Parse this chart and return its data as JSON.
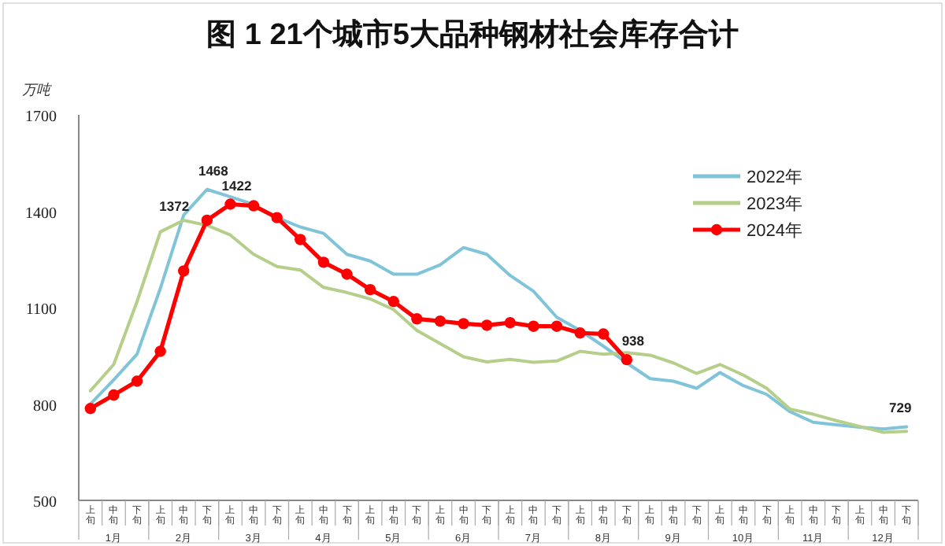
{
  "chart_data": {
    "type": "line",
    "title": "图 1 21个城市5大品种钢材社会库存合计",
    "ylabel": "万吨",
    "categories": [
      "上旬",
      "中旬",
      "下旬",
      "上旬",
      "中旬",
      "下旬",
      "上旬",
      "中旬",
      "下旬",
      "上旬",
      "中旬",
      "下旬",
      "上旬",
      "中旬",
      "下旬",
      "上旬",
      "中旬",
      "下旬",
      "上旬",
      "中旬",
      "下旬",
      "上旬",
      "中旬",
      "下旬",
      "上旬",
      "中旬",
      "下旬",
      "上旬",
      "中旬",
      "下旬",
      "上旬",
      "中旬",
      "下旬",
      "上旬",
      "中旬",
      "下旬"
    ],
    "annotations": [
      "1月",
      "2月",
      "3月",
      "4月",
      "5月",
      "6月",
      "7月",
      "8月",
      "9月",
      "10月",
      "11月",
      "12月"
    ],
    "ylim": [
      500,
      1700
    ],
    "yticks": [
      500,
      800,
      1100,
      1400,
      1700
    ],
    "grid": false,
    "legend": "top right",
    "series": [
      {
        "name": "2022年",
        "color": "#7fc4d8",
        "marker": "none",
        "values": [
          800,
          875,
          955,
          1160,
          1388,
          1468,
          1445,
          1421,
          1380,
          1351,
          1331,
          1266,
          1245,
          1204,
          1204,
          1233,
          1287,
          1266,
          1200,
          1151,
          1070,
          1029,
          980,
          928,
          879,
          871,
          849,
          898,
          857,
          830,
          776,
          743,
          735,
          728,
          722,
          729
        ],
        "value_labels": [
          null,
          null,
          null,
          null,
          null,
          "1468",
          null,
          null,
          null,
          null,
          null,
          null,
          null,
          null,
          null,
          null,
          null,
          null,
          null,
          null,
          null,
          null,
          null,
          null,
          null,
          null,
          null,
          null,
          null,
          null,
          null,
          null,
          null,
          null,
          null,
          "729"
        ]
      },
      {
        "name": "2023年",
        "color": "#b5cf8a",
        "marker": "none",
        "values": [
          841,
          923,
          1119,
          1336,
          1372,
          1356,
          1326,
          1266,
          1228,
          1217,
          1163,
          1147,
          1127,
          1094,
          1029,
          988,
          947,
          931,
          939,
          930,
          934,
          964,
          955,
          960,
          952,
          928,
          895,
          923,
          890,
          849,
          784,
          768,
          748,
          730,
          712,
          715
        ],
        "value_labels": [
          null,
          null,
          null,
          null,
          "1372",
          null,
          null,
          null,
          null,
          null,
          null,
          null,
          null,
          null,
          null,
          null,
          null,
          null,
          null,
          null,
          null,
          null,
          null,
          null,
          null,
          null,
          null,
          null,
          null,
          null,
          null,
          null,
          null,
          null,
          null,
          null
        ]
      },
      {
        "name": "2024年",
        "color": "#ff0000",
        "marker": "circle",
        "values": [
          786,
          828,
          871,
          964,
          1214,
          1372,
          1422,
          1417,
          1380,
          1312,
          1241,
          1204,
          1156,
          1119,
          1065,
          1058,
          1050,
          1045,
          1053,
          1042,
          1042,
          1021,
          1018,
          938,
          null,
          null,
          null,
          null,
          null,
          null,
          null,
          null,
          null,
          null,
          null,
          null
        ],
        "value_labels": [
          null,
          null,
          null,
          null,
          null,
          null,
          "1422",
          null,
          null,
          null,
          null,
          null,
          null,
          null,
          null,
          null,
          null,
          null,
          null,
          null,
          null,
          null,
          null,
          "938",
          null,
          null,
          null,
          null,
          null,
          null,
          null,
          null,
          null,
          null,
          null,
          null
        ]
      }
    ]
  }
}
